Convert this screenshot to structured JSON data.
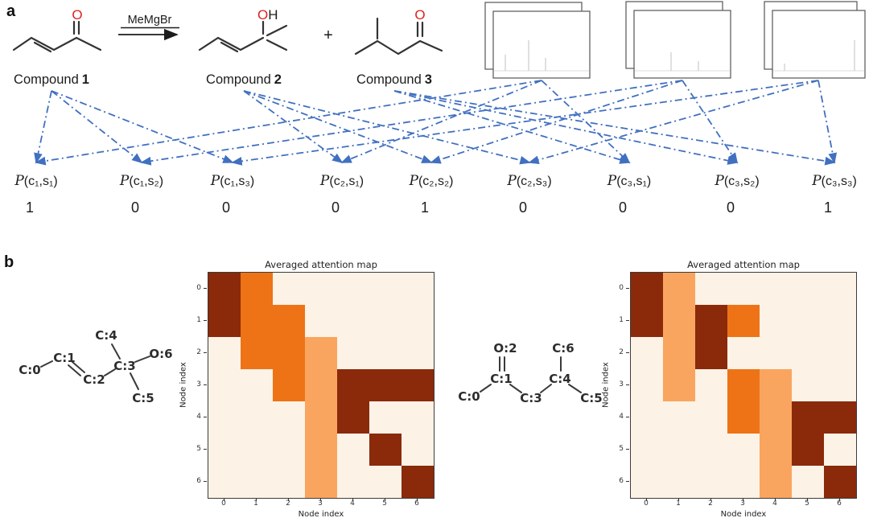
{
  "figure_meta": {
    "panel_a_label": "a",
    "panel_b_label": "b"
  },
  "panel_a": {
    "reagent": "MeMgBr",
    "plus_sign": "+",
    "compounds": [
      {
        "name_word": "Compound",
        "name_number": "1",
        "atom_red": "O",
        "atom_black": ""
      },
      {
        "name_word": "Compound",
        "name_number": "2",
        "atom_red": "O",
        "atom_black": "H"
      },
      {
        "name_word": "Compound",
        "name_number": "3",
        "atom_red": "O",
        "atom_black": ""
      }
    ],
    "spectra_stacks": 3,
    "probabilities": [
      {
        "symbol": "P",
        "args": "(c₁,s₁)",
        "value": "1"
      },
      {
        "symbol": "P",
        "args": "(c₁,s₂)",
        "value": "0"
      },
      {
        "symbol": "P",
        "args": "(c₁,s₃)",
        "value": "0"
      },
      {
        "symbol": "P",
        "args": "(c₂,s₁)",
        "value": "0"
      },
      {
        "symbol": "P",
        "args": "(c₂,s₂)",
        "value": "1"
      },
      {
        "symbol": "P",
        "args": "(c₂,s₃)",
        "value": "0"
      },
      {
        "symbol": "P",
        "args": "(c₃,s₁)",
        "value": "0"
      },
      {
        "symbol": "P",
        "args": "(c₃,s₂)",
        "value": "0"
      },
      {
        "symbol": "P",
        "args": "(c₃,s₃)",
        "value": "1"
      }
    ],
    "links": [
      [
        "c1",
        0
      ],
      [
        "c1",
        1
      ],
      [
        "c1",
        2
      ],
      [
        "c2",
        3
      ],
      [
        "c2",
        4
      ],
      [
        "c2",
        5
      ],
      [
        "c3",
        6
      ],
      [
        "c3",
        7
      ],
      [
        "c3",
        8
      ],
      [
        "s1",
        0
      ],
      [
        "s1",
        3
      ],
      [
        "s1",
        6
      ],
      [
        "s2",
        1
      ],
      [
        "s2",
        4
      ],
      [
        "s2",
        7
      ],
      [
        "s3",
        2
      ],
      [
        "s3",
        5
      ],
      [
        "s3",
        8
      ]
    ]
  },
  "panel_b": {
    "molecules": [
      {
        "atoms": [
          "C:0",
          "C:1",
          "C:2",
          "C:3",
          "C:4",
          "C:5",
          "O:6"
        ]
      },
      {
        "atoms": [
          "C:0",
          "C:1",
          "O:2",
          "C:3",
          "C:4",
          "C:5",
          "C:6"
        ]
      }
    ]
  },
  "chart_data": [
    {
      "type": "heatmap",
      "title": "Averaged attention map",
      "xlabel": "Node index",
      "ylabel": "Node index",
      "x_ticks": [
        "0",
        "1",
        "2",
        "3",
        "4",
        "5",
        "6"
      ],
      "y_ticks": [
        "0",
        "1",
        "2",
        "3",
        "4",
        "5",
        "6"
      ],
      "colormap": "Oranges",
      "palette": {
        "0": "#fdf2e6",
        "1": "#f9a55f",
        "2": "#ee7316",
        "3": "#8a2a0b"
      },
      "level_meaning": "0=lowest attention, 3=highest attention",
      "matrix": [
        [
          3,
          2,
          0,
          0,
          0,
          0,
          0
        ],
        [
          3,
          2,
          2,
          0,
          0,
          0,
          0
        ],
        [
          0,
          2,
          2,
          1,
          0,
          0,
          0
        ],
        [
          0,
          0,
          2,
          1,
          3,
          3,
          3
        ],
        [
          0,
          0,
          0,
          1,
          3,
          0,
          0
        ],
        [
          0,
          0,
          0,
          1,
          0,
          3,
          0
        ],
        [
          0,
          0,
          0,
          1,
          0,
          0,
          3
        ]
      ]
    },
    {
      "type": "heatmap",
      "title": "Averaged attention map",
      "xlabel": "Node index",
      "ylabel": "Node index",
      "x_ticks": [
        "0",
        "1",
        "2",
        "3",
        "4",
        "5",
        "6"
      ],
      "y_ticks": [
        "0",
        "1",
        "2",
        "3",
        "4",
        "5",
        "6"
      ],
      "colormap": "Oranges",
      "palette": {
        "0": "#fdf2e6",
        "1": "#f9a55f",
        "2": "#ee7316",
        "3": "#8a2a0b"
      },
      "level_meaning": "0=lowest attention, 3=highest attention",
      "matrix": [
        [
          3,
          1,
          0,
          0,
          0,
          0,
          0
        ],
        [
          3,
          1,
          3,
          2,
          0,
          0,
          0
        ],
        [
          0,
          1,
          3,
          0,
          0,
          0,
          0
        ],
        [
          0,
          1,
          0,
          2,
          1,
          0,
          0
        ],
        [
          0,
          0,
          0,
          2,
          1,
          3,
          3
        ],
        [
          0,
          0,
          0,
          0,
          1,
          3,
          0
        ],
        [
          0,
          0,
          0,
          0,
          1,
          0,
          3
        ]
      ]
    }
  ],
  "colors": {
    "heteroatom_red": "#dd2222",
    "arrow_blue": "#4170c0",
    "bond": "#333333"
  }
}
